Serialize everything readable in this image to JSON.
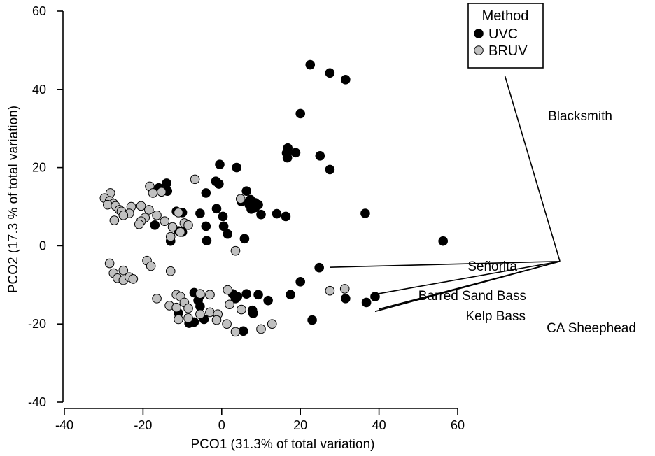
{
  "chart_data": {
    "type": "scatter",
    "xlabel": "PCO1 (31.3% of total variation)",
    "ylabel": "PCO2 (17.3 % of total variation)",
    "xlim": [
      -40,
      60
    ],
    "ylim": [
      -40,
      60
    ],
    "xticks": [
      -40,
      -20,
      0,
      20,
      40,
      60
    ],
    "yticks": [
      -40,
      -20,
      0,
      20,
      40,
      60
    ],
    "grid": false,
    "legend": {
      "title": "Method",
      "placement": "top-right",
      "entries": [
        {
          "label": "UVC",
          "color": "#000000"
        },
        {
          "label": "BRUV",
          "color": "#c0c0c0"
        }
      ]
    },
    "series": [
      {
        "name": "UVC",
        "color": "#000000",
        "points": [
          [
            22.5,
            46.3
          ],
          [
            27.5,
            44.2
          ],
          [
            31.5,
            42.5
          ],
          [
            20.0,
            33.8
          ],
          [
            16.8,
            25.0
          ],
          [
            16.5,
            23.7
          ],
          [
            18.8,
            23.8
          ],
          [
            25.0,
            23.0
          ],
          [
            16.7,
            22.5
          ],
          [
            27.5,
            19.5
          ],
          [
            36.5,
            8.3
          ],
          [
            56.3,
            1.2
          ],
          [
            -0.5,
            20.8
          ],
          [
            3.8,
            20.0
          ],
          [
            -1.5,
            16.5
          ],
          [
            -0.7,
            15.8
          ],
          [
            -14.0,
            16.0
          ],
          [
            -16.0,
            14.8
          ],
          [
            -13.8,
            14.0
          ],
          [
            -4.0,
            13.5
          ],
          [
            6.3,
            14.0
          ],
          [
            7.3,
            11.8
          ],
          [
            5.0,
            11.3
          ],
          [
            8.5,
            11.0
          ],
          [
            7.0,
            10.5
          ],
          [
            9.3,
            10.5
          ],
          [
            8.5,
            9.8
          ],
          [
            7.5,
            9.4
          ],
          [
            -1.3,
            9.5
          ],
          [
            -11.5,
            8.8
          ],
          [
            -10.0,
            8.5
          ],
          [
            -5.5,
            8.3
          ],
          [
            0.3,
            7.5
          ],
          [
            14.0,
            8.2
          ],
          [
            16.3,
            7.5
          ],
          [
            10.0,
            8.0
          ],
          [
            -17.0,
            5.3
          ],
          [
            -4.0,
            5.0
          ],
          [
            0.5,
            5.0
          ],
          [
            -10.0,
            3.5
          ],
          [
            1.5,
            3.0
          ],
          [
            -13.0,
            1.2
          ],
          [
            -3.8,
            1.3
          ],
          [
            5.8,
            1.8
          ],
          [
            -11.0,
            3.8
          ],
          [
            24.8,
            -5.6
          ],
          [
            20.0,
            -9.2
          ],
          [
            -7.0,
            -12.0
          ],
          [
            -5.5,
            -12.8
          ],
          [
            2.8,
            -12.3
          ],
          [
            6.3,
            -12.3
          ],
          [
            9.3,
            -12.5
          ],
          [
            17.5,
            -12.5
          ],
          [
            11.8,
            -14.0
          ],
          [
            31.5,
            -13.5
          ],
          [
            36.8,
            -14.5
          ],
          [
            39.0,
            -13.0
          ],
          [
            -11.0,
            -17.2
          ],
          [
            -4.5,
            -18.8
          ],
          [
            -7.0,
            -19.5
          ],
          [
            -8.3,
            -19.8
          ],
          [
            23.0,
            -19.0
          ],
          [
            5.5,
            -21.8
          ],
          [
            3.5,
            -13.5
          ],
          [
            -6.0,
            -14.0
          ],
          [
            -5.5,
            -15.5
          ],
          [
            7.8,
            -16.5
          ],
          [
            8.0,
            -17.3
          ],
          [
            4.0,
            -13.0
          ],
          [
            -3.0,
            -12.5
          ]
        ]
      },
      {
        "name": "BRUV",
        "color": "#c0c0c0",
        "points": [
          [
            -6.8,
            17.0
          ],
          [
            -18.3,
            15.2
          ],
          [
            -15.3,
            13.8
          ],
          [
            -17.5,
            13.5
          ],
          [
            -28.3,
            13.5
          ],
          [
            -29.8,
            12.2
          ],
          [
            -28.5,
            11.5
          ],
          [
            -27.5,
            10.8
          ],
          [
            -29.0,
            10.5
          ],
          [
            -27.0,
            10.2
          ],
          [
            -23.0,
            10.0
          ],
          [
            -20.5,
            10.2
          ],
          [
            -26.0,
            9.2
          ],
          [
            -25.5,
            8.8
          ],
          [
            -18.5,
            9.2
          ],
          [
            -23.5,
            8.3
          ],
          [
            -25.0,
            7.8
          ],
          [
            -16.5,
            7.8
          ],
          [
            -19.5,
            7.2
          ],
          [
            -20.5,
            6.3
          ],
          [
            -27.3,
            6.5
          ],
          [
            -14.5,
            6.3
          ],
          [
            -21.0,
            5.5
          ],
          [
            -9.5,
            5.8
          ],
          [
            -8.5,
            5.3
          ],
          [
            -12.5,
            4.8
          ],
          [
            -10.5,
            3.5
          ],
          [
            -13.0,
            2.3
          ],
          [
            -11.0,
            8.5
          ],
          [
            4.8,
            12.0
          ],
          [
            3.5,
            -1.3
          ],
          [
            -28.5,
            -4.5
          ],
          [
            -19.0,
            -3.8
          ],
          [
            -18.0,
            -5.2
          ],
          [
            -13.0,
            -6.5
          ],
          [
            -25.0,
            -6.3
          ],
          [
            -27.5,
            -7.0
          ],
          [
            -26.5,
            -8.3
          ],
          [
            -25.0,
            -8.8
          ],
          [
            -23.5,
            -8.0
          ],
          [
            -22.5,
            -8.5
          ],
          [
            -16.5,
            -13.5
          ],
          [
            -11.5,
            -12.5
          ],
          [
            -10.5,
            -13.0
          ],
          [
            -5.5,
            -12.3
          ],
          [
            -3.0,
            -12.5
          ],
          [
            1.5,
            -11.3
          ],
          [
            -13.3,
            -15.3
          ],
          [
            -11.5,
            -15.8
          ],
          [
            -9.5,
            -14.5
          ],
          [
            -8.5,
            -16.0
          ],
          [
            -3.0,
            -17.0
          ],
          [
            -1.0,
            -17.5
          ],
          [
            2.0,
            -15.0
          ],
          [
            5.0,
            -16.3
          ],
          [
            -11.0,
            -18.8
          ],
          [
            -8.5,
            -18.5
          ],
          [
            -1.3,
            -19.0
          ],
          [
            1.3,
            -20.0
          ],
          [
            3.5,
            -22.0
          ],
          [
            10.0,
            -21.3
          ],
          [
            12.8,
            -20.0
          ],
          [
            27.5,
            -11.5
          ],
          [
            31.3,
            -11.0
          ],
          [
            -5.5,
            -17.5
          ]
        ]
      }
    ],
    "vectors": [
      {
        "name": "Blacksmith",
        "to": [
          72.0,
          43.5
        ]
      },
      {
        "name": "Señorita",
        "to": [
          27.5,
          -5.5
        ]
      },
      {
        "name": "Barred Sand Bass",
        "to": [
          38.5,
          -12.5
        ]
      },
      {
        "name": "Kelp Bass",
        "to": [
          39.0,
          -16.8
        ]
      },
      {
        "name": "CA Sheephead",
        "to": [
          40.0,
          -16.2
        ]
      }
    ],
    "vector_origin": [
      86.0,
      -4.0
    ]
  }
}
